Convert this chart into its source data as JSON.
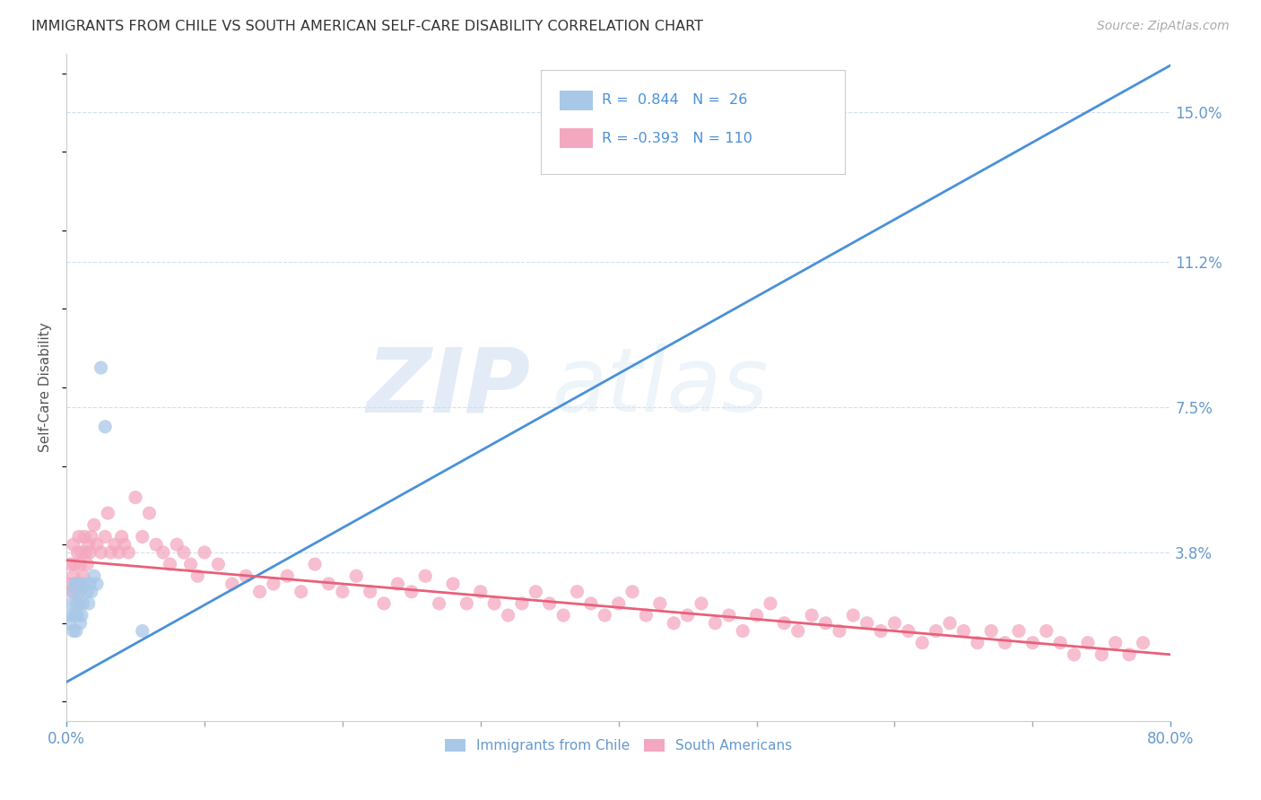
{
  "title": "IMMIGRANTS FROM CHILE VS SOUTH AMERICAN SELF-CARE DISABILITY CORRELATION CHART",
  "source": "Source: ZipAtlas.com",
  "ylabel": "Self-Care Disability",
  "xlim": [
    0.0,
    0.8
  ],
  "ylim": [
    -0.005,
    0.165
  ],
  "yticks": [
    0.038,
    0.075,
    0.112,
    0.15
  ],
  "ytick_labels": [
    "3.8%",
    "7.5%",
    "11.2%",
    "15.0%"
  ],
  "xtick_positions": [
    0.0,
    0.8
  ],
  "xtick_labels": [
    "0.0%",
    "80.0%"
  ],
  "blue_R": 0.844,
  "blue_N": 26,
  "pink_R": -0.393,
  "pink_N": 110,
  "blue_color": "#a8c8e8",
  "pink_color": "#f4a8c0",
  "blue_line_color": "#4a90d9",
  "pink_line_color": "#e8607a",
  "legend_label_blue": "Immigrants from Chile",
  "legend_label_pink": "South Americans",
  "watermark_zip": "ZIP",
  "watermark_atlas": "atlas",
  "background_color": "#ffffff",
  "tick_color": "#6699cc",
  "grid_color": "#d0dff0",
  "title_color": "#333333",
  "blue_trend_x0": 0.0,
  "blue_trend_y0": 0.005,
  "blue_trend_x1": 0.8,
  "blue_trend_y1": 0.162,
  "pink_trend_x0": 0.0,
  "pink_trend_y0": 0.036,
  "pink_trend_x1": 0.8,
  "pink_trend_y1": 0.012,
  "blue_scatter_x": [
    0.002,
    0.003,
    0.004,
    0.005,
    0.005,
    0.006,
    0.006,
    0.007,
    0.007,
    0.008,
    0.008,
    0.009,
    0.01,
    0.01,
    0.011,
    0.012,
    0.013,
    0.015,
    0.016,
    0.017,
    0.018,
    0.02,
    0.022,
    0.025,
    0.028,
    0.055
  ],
  "blue_scatter_y": [
    0.02,
    0.022,
    0.025,
    0.018,
    0.028,
    0.022,
    0.03,
    0.025,
    0.018,
    0.03,
    0.022,
    0.025,
    0.02,
    0.028,
    0.022,
    0.025,
    0.03,
    0.028,
    0.025,
    0.03,
    0.028,
    0.032,
    0.03,
    0.085,
    0.07,
    0.018
  ],
  "pink_scatter_x": [
    0.002,
    0.003,
    0.004,
    0.005,
    0.005,
    0.006,
    0.007,
    0.008,
    0.008,
    0.009,
    0.01,
    0.01,
    0.011,
    0.012,
    0.013,
    0.014,
    0.015,
    0.016,
    0.017,
    0.018,
    0.02,
    0.022,
    0.025,
    0.028,
    0.03,
    0.032,
    0.035,
    0.038,
    0.04,
    0.042,
    0.045,
    0.05,
    0.055,
    0.06,
    0.065,
    0.07,
    0.075,
    0.08,
    0.085,
    0.09,
    0.095,
    0.1,
    0.11,
    0.12,
    0.13,
    0.14,
    0.15,
    0.16,
    0.17,
    0.18,
    0.19,
    0.2,
    0.21,
    0.22,
    0.23,
    0.24,
    0.25,
    0.26,
    0.27,
    0.28,
    0.29,
    0.3,
    0.31,
    0.32,
    0.33,
    0.34,
    0.35,
    0.36,
    0.37,
    0.38,
    0.39,
    0.4,
    0.41,
    0.42,
    0.43,
    0.44,
    0.45,
    0.46,
    0.47,
    0.48,
    0.49,
    0.5,
    0.51,
    0.52,
    0.53,
    0.54,
    0.55,
    0.56,
    0.57,
    0.58,
    0.59,
    0.6,
    0.61,
    0.62,
    0.63,
    0.64,
    0.65,
    0.66,
    0.67,
    0.68,
    0.69,
    0.7,
    0.71,
    0.72,
    0.73,
    0.74,
    0.75,
    0.76,
    0.77,
    0.78
  ],
  "pink_scatter_y": [
    0.03,
    0.035,
    0.028,
    0.032,
    0.04,
    0.035,
    0.03,
    0.038,
    0.028,
    0.042,
    0.035,
    0.03,
    0.038,
    0.032,
    0.042,
    0.038,
    0.035,
    0.04,
    0.038,
    0.042,
    0.045,
    0.04,
    0.038,
    0.042,
    0.048,
    0.038,
    0.04,
    0.038,
    0.042,
    0.04,
    0.038,
    0.052,
    0.042,
    0.048,
    0.04,
    0.038,
    0.035,
    0.04,
    0.038,
    0.035,
    0.032,
    0.038,
    0.035,
    0.03,
    0.032,
    0.028,
    0.03,
    0.032,
    0.028,
    0.035,
    0.03,
    0.028,
    0.032,
    0.028,
    0.025,
    0.03,
    0.028,
    0.032,
    0.025,
    0.03,
    0.025,
    0.028,
    0.025,
    0.022,
    0.025,
    0.028,
    0.025,
    0.022,
    0.028,
    0.025,
    0.022,
    0.025,
    0.028,
    0.022,
    0.025,
    0.02,
    0.022,
    0.025,
    0.02,
    0.022,
    0.018,
    0.022,
    0.025,
    0.02,
    0.018,
    0.022,
    0.02,
    0.018,
    0.022,
    0.02,
    0.018,
    0.02,
    0.018,
    0.015,
    0.018,
    0.02,
    0.018,
    0.015,
    0.018,
    0.015,
    0.018,
    0.015,
    0.018,
    0.015,
    0.012,
    0.015,
    0.012,
    0.015,
    0.012,
    0.015
  ]
}
